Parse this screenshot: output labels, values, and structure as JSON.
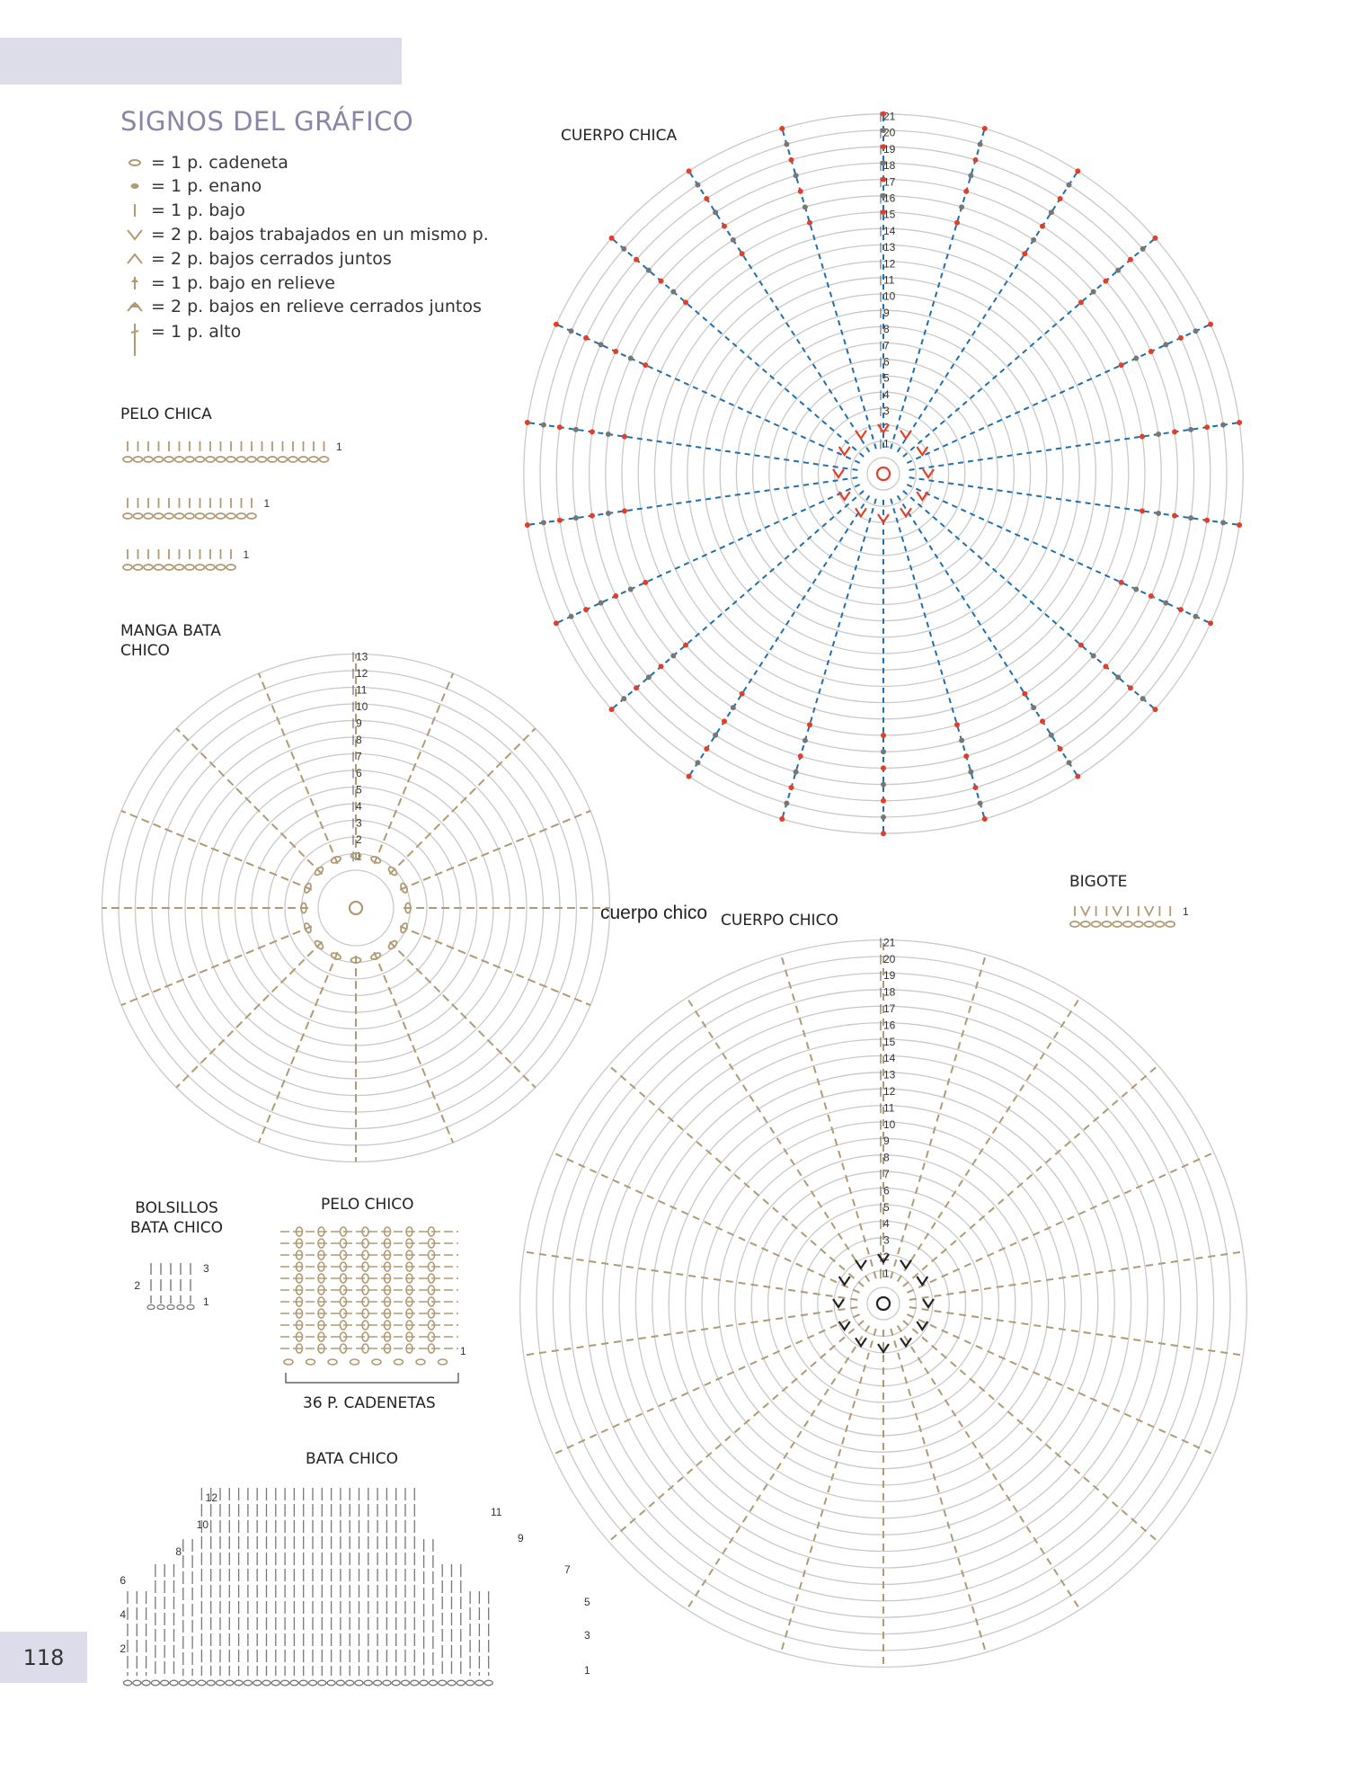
{
  "page": {
    "number": "118"
  },
  "legend": {
    "title": "SIGNOS DEL GRÁFICO",
    "items": [
      {
        "icon": "chain-stitch-icon",
        "text": "= 1 p. cadeneta"
      },
      {
        "icon": "slip-stitch-icon",
        "text": "= 1 p. enano"
      },
      {
        "icon": "single-crochet-icon",
        "text": "= 1 p. bajo"
      },
      {
        "icon": "increase-icon",
        "text": "= 2 p. bajos trabajados en un mismo p."
      },
      {
        "icon": "decrease-icon",
        "text": "= 2 p. bajos cerrados juntos"
      },
      {
        "icon": "relief-stitch-icon",
        "text": "= 1 p. bajo en relieve"
      },
      {
        "icon": "relief-decrease-icon",
        "text": "= 2 p. bajos en relieve cerrados juntos"
      },
      {
        "icon": "double-crochet-icon",
        "text": "= 1 p. alto"
      }
    ]
  },
  "charts": {
    "pelo_chica": {
      "title": "PELO CHICA",
      "row_label": "1"
    },
    "manga_bata_chico": {
      "title_line1": "MANGA BATA",
      "title_line2": "CHICO",
      "rows": [
        "1",
        "2",
        "3",
        "4",
        "5",
        "6",
        "7",
        "8",
        "9",
        "10",
        "11",
        "12",
        "13"
      ]
    },
    "cuerpo_chica": {
      "title": "CUERPO CHICA",
      "rows": [
        "1",
        "2",
        "3",
        "4",
        "5",
        "6",
        "7",
        "8",
        "9",
        "10",
        "11",
        "12",
        "13",
        "14",
        "15",
        "16",
        "17",
        "18",
        "19",
        "20",
        "21"
      ]
    },
    "cuerpo_chico": {
      "title": "CUERPO CHICO",
      "overlay": "cuerpo chico",
      "rows": [
        "1",
        "2",
        "3",
        "4",
        "5",
        "6",
        "7",
        "8",
        "9",
        "10",
        "11",
        "12",
        "13",
        "14",
        "15",
        "16",
        "17",
        "18",
        "19",
        "20",
        "21"
      ]
    },
    "bigote": {
      "title": "BIGOTE",
      "row_label": "1"
    },
    "bolsillos_bata_chico": {
      "title_line1": "BOLSILLOS",
      "title_line2": "BATA CHICO",
      "row_labels": [
        "3",
        "2",
        "1"
      ]
    },
    "pelo_chico": {
      "title": "PELO CHICO",
      "row_label": "1",
      "base": "36 P. CADENETAS"
    },
    "bata_chico": {
      "title": "BATA CHICO",
      "left_rows": [
        "12",
        "10",
        "8",
        "6",
        "4",
        "2"
      ],
      "right_rows": [
        "11",
        "9",
        "7",
        "5",
        "3",
        "1"
      ]
    }
  },
  "colors": {
    "accent": "#8a86a8",
    "grid": "#c9c9c9",
    "tan": "#b09a72",
    "red": "#e0402a",
    "blue": "#1f6fae",
    "grey": "#777777"
  }
}
